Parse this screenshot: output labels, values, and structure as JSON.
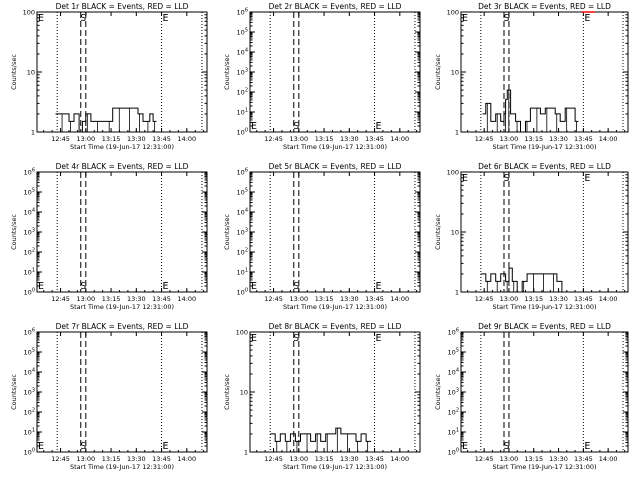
{
  "figure": {
    "background": "#ffffff",
    "foreground": "#000000",
    "lld_color": "#ff0000"
  },
  "chart_data": [
    {
      "type": "line",
      "title": "Det 1r BLACK = Events, RED = LLD",
      "ylabel": "Counts/sec",
      "xlabel": "Start Time (19-Jun-17 12:31:00)",
      "x_ticks": [
        "12:45",
        "13:00",
        "13:15",
        "13:30",
        "13:45",
        "14:00"
      ],
      "y_scale": "log",
      "ylim": [
        1,
        100
      ],
      "y_ticks": [
        "1",
        "10",
        "100"
      ],
      "y_tick_values": [
        1,
        10,
        100
      ],
      "vlines_dotted": [
        "12:43",
        "13:45",
        "14:09"
      ],
      "vlines_dashed": [
        "12:57",
        "13:00"
      ],
      "markers": [
        {
          "label": "E",
          "pos": "top-left"
        },
        {
          "label": "S",
          "pos": "top-dash"
        },
        {
          "label": "E",
          "pos": "top-right"
        }
      ],
      "series": [
        {
          "color": "black",
          "x": [
            "12:42",
            "12:45",
            "12:48",
            "12:50",
            "12:53",
            "12:56",
            "12:58",
            "13:00",
            "13:03",
            "13:06",
            "13:10",
            "13:13",
            "13:16",
            "13:19",
            "13:22",
            "13:25",
            "13:28",
            "13:31",
            "13:34",
            "13:36",
            "13:38",
            "13:40",
            "13:42"
          ],
          "values": [
            2,
            2,
            2,
            1.5,
            2,
            1,
            1.5,
            2,
            1.5,
            1.5,
            1.5,
            1.5,
            2.5,
            2.5,
            2.5,
            2.5,
            2.5,
            2,
            1.5,
            1.5,
            2,
            1.5,
            1.5
          ]
        }
      ]
    },
    {
      "type": "line",
      "title": "Det 2r BLACK = Events, RED = LLD",
      "ylabel": "Counts/sec",
      "xlabel": "Start Time (19-Jun-17 12:31:00)",
      "x_ticks": [
        "12:45",
        "13:00",
        "13:15",
        "13:30",
        "13:45",
        "14:00"
      ],
      "y_scale": "log",
      "ylim": [
        1,
        1000000
      ],
      "y_ticks": [
        "10^0",
        "10^1",
        "10^2",
        "10^3",
        "10^4",
        "10^5",
        "10^6"
      ],
      "y_tick_values": [
        1,
        10,
        100,
        1000,
        10000,
        100000,
        1000000
      ],
      "vlines_dotted": [
        "12:43",
        "13:45",
        "14:09"
      ],
      "vlines_dashed": [
        "12:57",
        "13:00"
      ],
      "markers": [
        {
          "label": "E",
          "pos": "bottom-left"
        },
        {
          "label": "S",
          "pos": "bottom-dash"
        },
        {
          "label": "E",
          "pos": "bottom-right"
        }
      ],
      "series": []
    },
    {
      "type": "line",
      "title": "Det 3r BLACK = Events, RED = LLD",
      "ylabel": "Counts/sec",
      "xlabel": "Start Time (19-Jun-17 12:31:00)",
      "x_ticks": [
        "12:45",
        "13:00",
        "13:15",
        "13:30",
        "13:45",
        "14:00"
      ],
      "y_scale": "log",
      "ylim": [
        1,
        100
      ],
      "y_ticks": [
        "1",
        "10",
        "100"
      ],
      "y_tick_values": [
        1,
        10,
        100
      ],
      "vlines_dotted": [
        "12:43",
        "13:45",
        "14:09"
      ],
      "vlines_dashed": [
        "12:57",
        "13:00"
      ],
      "markers": [
        {
          "label": "E",
          "pos": "top-left"
        },
        {
          "label": "S",
          "pos": "top-dash"
        },
        {
          "label": "E",
          "pos": "top-right"
        }
      ],
      "series": [
        {
          "color": "black",
          "x": [
            "12:44",
            "12:46",
            "12:49",
            "12:52",
            "12:55",
            "12:57",
            "12:58",
            "12:59",
            "13:01",
            "13:04",
            "13:07",
            "13:10",
            "13:13",
            "13:16",
            "13:19",
            "13:22",
            "13:25",
            "13:28",
            "13:31",
            "13:34",
            "13:37",
            "13:40",
            "13:42"
          ],
          "values": [
            2,
            3,
            1.5,
            2,
            1.5,
            2,
            3.5,
            5,
            2,
            1.5,
            1,
            1.5,
            2.5,
            2.5,
            2,
            2.5,
            2.5,
            2,
            1.5,
            2.5,
            2.5,
            1.5,
            1.5
          ]
        },
        {
          "color": "red",
          "x": [
            "13:44",
            "13:52"
          ],
          "values": [
            100,
            100
          ]
        }
      ]
    },
    {
      "type": "line",
      "title": "Det 4r BLACK = Events, RED = LLD",
      "ylabel": "Counts/sec",
      "xlabel": "Start Time (19-Jun-17 12:31:00)",
      "x_ticks": [
        "12:45",
        "13:00",
        "13:15",
        "13:30",
        "13:45",
        "14:00"
      ],
      "y_scale": "log",
      "ylim": [
        1,
        1000000
      ],
      "y_ticks": [
        "10^0",
        "10^1",
        "10^2",
        "10^3",
        "10^4",
        "10^5",
        "10^6"
      ],
      "y_tick_values": [
        1,
        10,
        100,
        1000,
        10000,
        100000,
        1000000
      ],
      "vlines_dotted": [
        "12:43",
        "13:45",
        "14:09"
      ],
      "vlines_dashed": [
        "12:57",
        "13:00"
      ],
      "markers": [
        {
          "label": "E",
          "pos": "bottom-left"
        },
        {
          "label": "S",
          "pos": "bottom-dash"
        },
        {
          "label": "E",
          "pos": "bottom-right"
        }
      ],
      "series": []
    },
    {
      "type": "line",
      "title": "Det 5r BLACK = Events, RED = LLD",
      "ylabel": "Counts/sec",
      "xlabel": "Start Time (19-Jun-17 12:31:00)",
      "x_ticks": [
        "12:45",
        "13:00",
        "13:15",
        "13:30",
        "13:45",
        "14:00"
      ],
      "y_scale": "log",
      "ylim": [
        1,
        1000000
      ],
      "y_ticks": [
        "10^0",
        "10^1",
        "10^2",
        "10^3",
        "10^4",
        "10^5",
        "10^6"
      ],
      "y_tick_values": [
        1,
        10,
        100,
        1000,
        10000,
        100000,
        1000000
      ],
      "vlines_dotted": [
        "12:43",
        "13:45",
        "14:09"
      ],
      "vlines_dashed": [
        "12:57",
        "13:00"
      ],
      "markers": [
        {
          "label": "E",
          "pos": "bottom-left"
        },
        {
          "label": "S",
          "pos": "bottom-dash"
        },
        {
          "label": "E",
          "pos": "bottom-right"
        }
      ],
      "series": []
    },
    {
      "type": "line",
      "title": "Det 6r BLACK = Events, RED = LLD",
      "ylabel": "Counts/sec",
      "xlabel": "Start Time (19-Jun-17 12:31:00)",
      "x_ticks": [
        "12:45",
        "13:00",
        "13:15",
        "13:30",
        "13:45",
        "14:00"
      ],
      "y_scale": "log",
      "ylim": [
        1,
        100
      ],
      "y_ticks": [
        "1",
        "10",
        "100"
      ],
      "y_tick_values": [
        1,
        10,
        100
      ],
      "vlines_dotted": [
        "12:43",
        "13:45",
        "14:09"
      ],
      "vlines_dashed": [
        "12:57",
        "13:00"
      ],
      "markers": [
        {
          "label": "E",
          "pos": "top-left"
        },
        {
          "label": "S",
          "pos": "top-dash"
        },
        {
          "label": "E",
          "pos": "top-right"
        }
      ],
      "series": [
        {
          "color": "black",
          "x": [
            "12:43",
            "12:46",
            "12:49",
            "12:52",
            "12:55",
            "12:58",
            "13:00",
            "13:02",
            "13:05",
            "13:08",
            "13:11",
            "13:14",
            "13:17",
            "13:20",
            "13:23",
            "13:26",
            "13:29",
            "13:32",
            "13:35",
            "13:38",
            "13:41"
          ],
          "values": [
            2,
            1.5,
            2,
            1.5,
            2,
            1.5,
            2.5,
            1.5,
            1,
            1.5,
            2,
            2,
            2,
            2,
            2,
            2,
            1.5,
            1,
            1,
            1,
            1
          ]
        }
      ]
    },
    {
      "type": "line",
      "title": "Det 7r BLACK = Events, RED = LLD",
      "ylabel": "Counts/sec",
      "xlabel": "Start Time (19-Jun-17 12:31:00)",
      "x_ticks": [
        "12:45",
        "13:00",
        "13:15",
        "13:30",
        "13:45",
        "14:00"
      ],
      "y_scale": "log",
      "ylim": [
        1,
        1000000
      ],
      "y_ticks": [
        "10^0",
        "10^1",
        "10^2",
        "10^3",
        "10^4",
        "10^5",
        "10^6"
      ],
      "y_tick_values": [
        1,
        10,
        100,
        1000,
        10000,
        100000,
        1000000
      ],
      "vlines_dotted": [
        "12:43",
        "13:45",
        "14:09"
      ],
      "vlines_dashed": [
        "12:57",
        "13:00"
      ],
      "markers": [
        {
          "label": "E",
          "pos": "bottom-left"
        },
        {
          "label": "S",
          "pos": "bottom-dash"
        },
        {
          "label": "E",
          "pos": "bottom-right"
        }
      ],
      "series": []
    },
    {
      "type": "line",
      "title": "Det 8r BLACK = Events, RED = LLD",
      "ylabel": "Counts/sec",
      "xlabel": "Start Time (19-Jun-17 12:31:00)",
      "x_ticks": [
        "12:45",
        "13:00",
        "13:15",
        "13:30",
        "13:45",
        "14:00"
      ],
      "y_scale": "log",
      "ylim": [
        1,
        100
      ],
      "y_ticks": [
        "1",
        "10",
        "100"
      ],
      "y_tick_values": [
        1,
        10,
        100
      ],
      "vlines_dotted": [
        "12:43",
        "13:45",
        "14:09"
      ],
      "vlines_dashed": [
        "12:57",
        "13:00"
      ],
      "markers": [
        {
          "label": "E",
          "pos": "top-left"
        },
        {
          "label": "S",
          "pos": "top-dash"
        },
        {
          "label": "E",
          "pos": "top-right"
        }
      ],
      "series": [
        {
          "color": "black",
          "x": [
            "12:43",
            "12:46",
            "12:49",
            "12:52",
            "12:55",
            "12:58",
            "13:01",
            "13:04",
            "13:07",
            "13:10",
            "13:13",
            "13:16",
            "13:19",
            "13:22",
            "13:25",
            "13:28",
            "13:31",
            "13:34",
            "13:37",
            "13:40",
            "13:43"
          ],
          "values": [
            2,
            1.5,
            2,
            1.5,
            2,
            1.5,
            2,
            2,
            1.5,
            2,
            1.5,
            2,
            2,
            2.5,
            2,
            2,
            2,
            1.5,
            2,
            1.5,
            1.5
          ]
        }
      ]
    },
    {
      "type": "line",
      "title": "Det 9r BLACK = Events, RED = LLD",
      "ylabel": "Counts/sec",
      "xlabel": "Start Time (19-Jun-17 12:31:00)",
      "x_ticks": [
        "12:45",
        "13:00",
        "13:15",
        "13:30",
        "13:45",
        "14:00"
      ],
      "y_scale": "log",
      "ylim": [
        1,
        1000000
      ],
      "y_ticks": [
        "10^0",
        "10^1",
        "10^2",
        "10^3",
        "10^4",
        "10^5",
        "10^6"
      ],
      "y_tick_values": [
        1,
        10,
        100,
        1000,
        10000,
        100000,
        1000000
      ],
      "vlines_dotted": [
        "12:43",
        "13:45",
        "14:09"
      ],
      "vlines_dashed": [
        "12:57",
        "13:00"
      ],
      "markers": [
        {
          "label": "E",
          "pos": "bottom-left"
        },
        {
          "label": "S",
          "pos": "bottom-dash"
        },
        {
          "label": "E",
          "pos": "bottom-right"
        }
      ],
      "series": []
    }
  ]
}
